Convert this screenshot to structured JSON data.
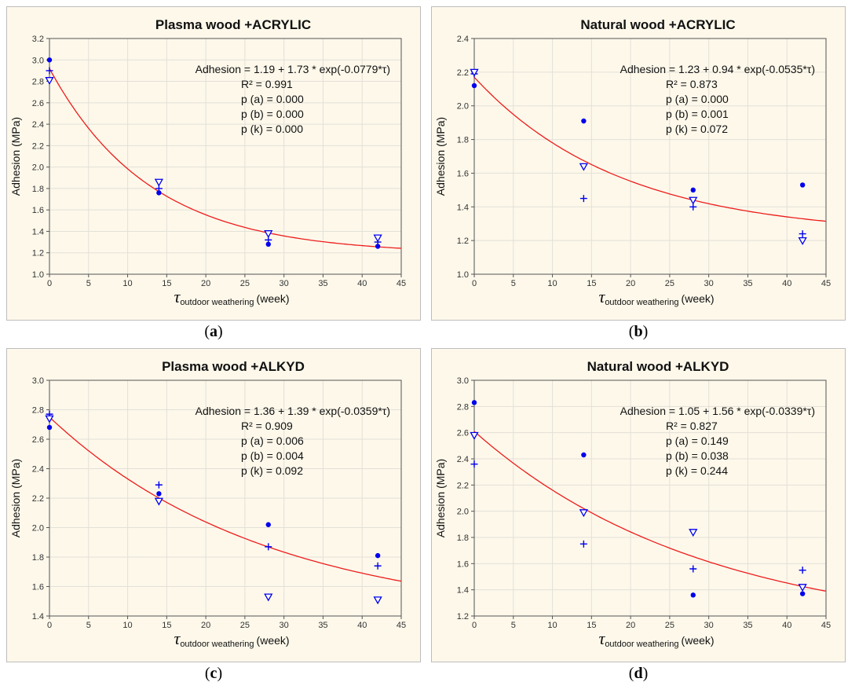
{
  "chart_data": [
    {
      "type": "scatter",
      "panel": "a",
      "title": "Plasma wood +ACRYLIC",
      "xlabel": {
        "symbol": "τ",
        "subscript": "outdoor weathering",
        "unit": "(week)"
      },
      "ylabel": "Adhesion (MPa)",
      "xlim": [
        0,
        45
      ],
      "ylim": [
        1.0,
        3.2
      ],
      "xstep": 5,
      "ystep": 0.2,
      "fit": {
        "a": 1.19,
        "b": 1.73,
        "k": 0.0779
      },
      "annotation": [
        "Adhesion = 1.19 + 1.73 * exp(-0.0779*τ)",
        "R² = 0.991",
        "p (a) = 0.000",
        "p (b) = 0.000",
        "p (k) = 0.000"
      ],
      "series": [
        {
          "name": "dot",
          "marker": "dot",
          "x": [
            0,
            14,
            28,
            42
          ],
          "y": [
            3.0,
            1.76,
            1.28,
            1.26
          ]
        },
        {
          "name": "plus",
          "marker": "plus",
          "x": [
            0,
            14,
            28,
            42
          ],
          "y": [
            2.9,
            1.8,
            1.32,
            1.3
          ]
        },
        {
          "name": "triangle",
          "marker": "triangle",
          "x": [
            0,
            14,
            28,
            42
          ],
          "y": [
            2.81,
            1.86,
            1.38,
            1.34
          ]
        }
      ]
    },
    {
      "type": "scatter",
      "panel": "b",
      "title": "Natural wood +ACRYLIC",
      "xlabel": {
        "symbol": "τ",
        "subscript": "outdoor weathering",
        "unit": "(week)"
      },
      "ylabel": "Adhesion (MPa)",
      "xlim": [
        0,
        45
      ],
      "ylim": [
        1.0,
        2.4
      ],
      "xstep": 5,
      "ystep": 0.2,
      "fit": {
        "a": 1.23,
        "b": 0.94,
        "k": 0.0535
      },
      "annotation": [
        "Adhesion = 1.23 + 0.94 * exp(-0.0535*τ)",
        "R² = 0.873",
        "p (a) = 0.000",
        "p (b) = 0.001",
        "p (k) = 0.072"
      ],
      "series": [
        {
          "name": "dot",
          "marker": "dot",
          "x": [
            0,
            14,
            28,
            42
          ],
          "y": [
            2.12,
            1.91,
            1.5,
            1.53
          ]
        },
        {
          "name": "plus",
          "marker": "plus",
          "x": [
            0,
            14,
            28,
            42
          ],
          "y": [
            2.19,
            1.45,
            1.4,
            1.24
          ]
        },
        {
          "name": "triangle",
          "marker": "triangle",
          "x": [
            0,
            14,
            28,
            42
          ],
          "y": [
            2.2,
            1.64,
            1.44,
            1.2
          ]
        }
      ]
    },
    {
      "type": "scatter",
      "panel": "c",
      "title": "Plasma wood +ALKYD",
      "xlabel": {
        "symbol": "τ",
        "subscript": "outdoor weathering",
        "unit": "(week)"
      },
      "ylabel": "Adhesion (MPa)",
      "xlim": [
        0,
        45
      ],
      "ylim": [
        1.4,
        3.0
      ],
      "xstep": 5,
      "ystep": 0.2,
      "fit": {
        "a": 1.36,
        "b": 1.39,
        "k": 0.0359
      },
      "annotation": [
        "Adhesion = 1.36 + 1.39 * exp(-0.0359*τ)",
        "R² = 0.909",
        "p (a) = 0.006",
        "p (b) = 0.004",
        "p (k) = 0.092"
      ],
      "series": [
        {
          "name": "dot",
          "marker": "dot",
          "x": [
            0,
            14,
            28,
            42
          ],
          "y": [
            2.68,
            2.23,
            2.02,
            1.81
          ]
        },
        {
          "name": "plus",
          "marker": "plus",
          "x": [
            0,
            14,
            28,
            42
          ],
          "y": [
            2.77,
            2.29,
            1.87,
            1.74
          ]
        },
        {
          "name": "triangle",
          "marker": "triangle",
          "x": [
            0,
            14,
            28,
            42
          ],
          "y": [
            2.74,
            2.18,
            1.53,
            1.51
          ]
        }
      ]
    },
    {
      "type": "scatter",
      "panel": "d",
      "title": "Natural wood +ALKYD",
      "xlabel": {
        "symbol": "τ",
        "subscript": "outdoor weathering",
        "unit": "(week)"
      },
      "ylabel": "Adhesion (MPa)",
      "xlim": [
        0,
        45
      ],
      "ylim": [
        1.2,
        3.0
      ],
      "xstep": 5,
      "ystep": 0.2,
      "fit": {
        "a": 1.05,
        "b": 1.56,
        "k": 0.0339
      },
      "annotation": [
        "Adhesion = 1.05 + 1.56 * exp(-0.0339*τ)",
        "R² = 0.827",
        "p (a) = 0.149",
        "p (b) = 0.038",
        "p (k) = 0.244"
      ],
      "series": [
        {
          "name": "dot",
          "marker": "dot",
          "x": [
            0,
            14,
            28,
            42
          ],
          "y": [
            2.83,
            2.43,
            1.36,
            1.37
          ]
        },
        {
          "name": "plus",
          "marker": "plus",
          "x": [
            0,
            14,
            28,
            42
          ],
          "y": [
            2.36,
            1.75,
            1.56,
            1.55
          ]
        },
        {
          "name": "triangle",
          "marker": "triangle",
          "x": [
            0,
            14,
            28,
            42
          ],
          "y": [
            2.58,
            1.99,
            1.84,
            1.42
          ]
        }
      ]
    }
  ],
  "captions": [
    "a",
    "b",
    "c",
    "d"
  ],
  "colors": {
    "marker": "#0000ee",
    "fit": "#ee1c1c",
    "grid": "#e3e0d8",
    "axis": "#555555",
    "panel_bg": "#fdf8ea"
  }
}
